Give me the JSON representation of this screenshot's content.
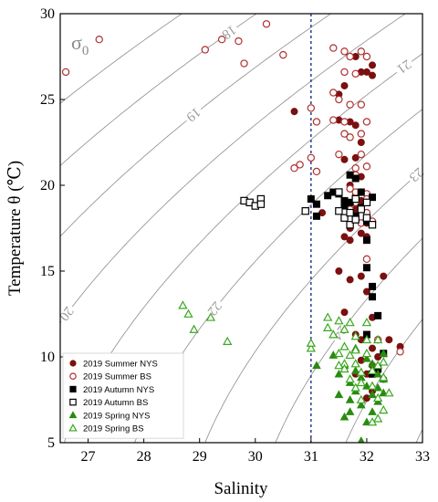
{
  "chart_data": {
    "type": "scatter",
    "xlabel": "Salinity",
    "ylabel": "Temperature θ (℃)",
    "xlim": [
      26.5,
      33
    ],
    "ylim": [
      5,
      30
    ],
    "xticks": [
      27,
      28,
      29,
      30,
      31,
      32,
      33
    ],
    "yticks": [
      5,
      10,
      15,
      20,
      25,
      30
    ],
    "reference_line_x": 31,
    "density_label": "σ",
    "density_label_sub": "0",
    "contours": [
      {
        "label": "18",
        "sigma": 18
      },
      {
        "label": "19",
        "sigma": 19
      },
      {
        "label": "20",
        "sigma": 20
      },
      {
        "label": "21",
        "sigma": 21
      },
      {
        "label": "22",
        "sigma": 22
      },
      {
        "label": "23",
        "sigma": 23
      },
      {
        "label": "24",
        "sigma": 24
      },
      {
        "sigma": 17
      },
      {
        "sigma": 25
      },
      {
        "sigma": 26
      }
    ],
    "legend_position": "bottom-left",
    "series": [
      {
        "name": "2019 Summer NYS",
        "marker": "circle-filled",
        "color": "#7a1010",
        "points": [
          [
            30.7,
            24.3
          ],
          [
            31.5,
            25.3
          ],
          [
            31.6,
            25.8
          ],
          [
            31.8,
            27.5
          ],
          [
            31.9,
            26.6
          ],
          [
            32.0,
            26.6
          ],
          [
            32.1,
            27.0
          ],
          [
            32.1,
            26.4
          ],
          [
            31.5,
            23.8
          ],
          [
            31.7,
            23.7
          ],
          [
            31.8,
            23.5
          ],
          [
            31.9,
            23.0
          ],
          [
            31.9,
            22.5
          ],
          [
            31.6,
            21.5
          ],
          [
            31.8,
            21.6
          ],
          [
            31.9,
            20.5
          ],
          [
            31.7,
            20.0
          ],
          [
            31.8,
            19.4
          ],
          [
            31.6,
            19.0
          ],
          [
            31.9,
            19.1
          ],
          [
            31.8,
            18.6
          ],
          [
            31.8,
            18.2
          ],
          [
            32.0,
            17.8
          ],
          [
            31.7,
            17.5
          ],
          [
            31.9,
            17.2
          ],
          [
            32.0,
            17.0
          ],
          [
            31.6,
            17.0
          ],
          [
            31.7,
            16.8
          ],
          [
            31.2,
            18.4
          ],
          [
            31.5,
            15.0
          ],
          [
            31.7,
            14.5
          ],
          [
            31.9,
            14.7
          ],
          [
            32.0,
            13.8
          ],
          [
            32.3,
            14.7
          ],
          [
            31.6,
            12.6
          ],
          [
            32.1,
            12.3
          ],
          [
            31.9,
            11.0
          ],
          [
            32.1,
            10.5
          ],
          [
            32.4,
            11.0
          ],
          [
            32.6,
            10.6
          ],
          [
            31.9,
            9.8
          ],
          [
            32.1,
            9.5
          ],
          [
            32.2,
            9.2
          ],
          [
            32.0,
            9.0
          ],
          [
            32.3,
            8.7
          ],
          [
            31.8,
            9.0
          ],
          [
            32.1,
            8.0
          ],
          [
            32.2,
            10.0
          ],
          [
            31.8,
            11.3
          ],
          [
            32.0,
            7.6
          ]
        ]
      },
      {
        "name": "2019 Summer BS",
        "marker": "circle-open",
        "color": "#b03030",
        "points": [
          [
            26.6,
            26.6
          ],
          [
            27.2,
            28.5
          ],
          [
            29.1,
            27.9
          ],
          [
            29.4,
            28.5
          ],
          [
            29.7,
            28.4
          ],
          [
            29.8,
            27.1
          ],
          [
            30.2,
            29.4
          ],
          [
            30.5,
            27.6
          ],
          [
            30.7,
            21.0
          ],
          [
            30.8,
            21.2
          ],
          [
            31.0,
            24.5
          ],
          [
            31.1,
            23.7
          ],
          [
            31.0,
            21.6
          ],
          [
            31.1,
            20.8
          ],
          [
            31.4,
            28.0
          ],
          [
            31.6,
            27.8
          ],
          [
            31.7,
            27.5
          ],
          [
            31.9,
            27.8
          ],
          [
            32.0,
            27.5
          ],
          [
            31.6,
            26.6
          ],
          [
            31.8,
            26.5
          ],
          [
            31.4,
            25.4
          ],
          [
            31.5,
            25.0
          ],
          [
            31.7,
            24.7
          ],
          [
            31.9,
            24.7
          ],
          [
            31.4,
            23.8
          ],
          [
            31.6,
            23.7
          ],
          [
            32.0,
            23.7
          ],
          [
            31.6,
            23.0
          ],
          [
            31.7,
            22.8
          ],
          [
            31.9,
            23.0
          ],
          [
            31.5,
            21.8
          ],
          [
            31.9,
            21.8
          ],
          [
            31.8,
            21.0
          ],
          [
            32.0,
            21.1
          ],
          [
            31.8,
            20.6
          ],
          [
            31.7,
            19.8
          ],
          [
            31.8,
            19.6
          ],
          [
            31.9,
            19.6
          ],
          [
            32.0,
            19.5
          ],
          [
            31.8,
            19.0
          ],
          [
            32.0,
            19.2
          ],
          [
            31.7,
            18.6
          ],
          [
            31.9,
            18.6
          ],
          [
            32.0,
            18.4
          ],
          [
            31.8,
            18.0
          ],
          [
            31.9,
            17.8
          ],
          [
            32.1,
            17.9
          ],
          [
            32.0,
            15.7
          ],
          [
            32.2,
            11.0
          ],
          [
            32.6,
            10.3
          ]
        ]
      },
      {
        "name": "2019 Autumn NYS",
        "marker": "square-filled",
        "color": "#000000",
        "points": [
          [
            31.0,
            19.2
          ],
          [
            31.1,
            18.9
          ],
          [
            31.1,
            18.2
          ],
          [
            31.3,
            19.4
          ],
          [
            31.4,
            19.6
          ],
          [
            31.5,
            19.5
          ],
          [
            31.6,
            19.1
          ],
          [
            31.6,
            18.8
          ],
          [
            31.7,
            20.6
          ],
          [
            31.7,
            19.0
          ],
          [
            31.8,
            20.4
          ],
          [
            31.8,
            18.2
          ],
          [
            31.9,
            19.6
          ],
          [
            32.0,
            17.9
          ],
          [
            32.0,
            16.8
          ],
          [
            32.1,
            19.3
          ],
          [
            32.0,
            15.2
          ],
          [
            32.1,
            14.1
          ],
          [
            32.1,
            13.5
          ],
          [
            32.2,
            12.4
          ],
          [
            32.0,
            11.3
          ],
          [
            32.3,
            10.2
          ],
          [
            32.2,
            9.3
          ],
          [
            32.1,
            9.0
          ],
          [
            31.9,
            18.7
          ]
        ]
      },
      {
        "name": "2019 Autumn BS",
        "marker": "square-open",
        "color": "#000000",
        "points": [
          [
            29.8,
            19.1
          ],
          [
            29.9,
            19.0
          ],
          [
            30.0,
            18.8
          ],
          [
            30.1,
            19.2
          ],
          [
            30.1,
            18.9
          ],
          [
            30.9,
            18.5
          ],
          [
            31.5,
            19.6
          ],
          [
            31.5,
            18.5
          ],
          [
            31.6,
            18.1
          ],
          [
            31.7,
            18.4
          ],
          [
            31.7,
            17.7
          ],
          [
            31.8,
            18.0
          ],
          [
            31.8,
            19.2
          ],
          [
            31.9,
            18.6
          ],
          [
            32.0,
            18.1
          ],
          [
            32.1,
            17.7
          ],
          [
            32.0,
            19.0
          ]
        ]
      },
      {
        "name": "2019 Spring NYS",
        "marker": "triangle-filled",
        "color": "#2a8a10",
        "points": [
          [
            31.5,
            9.0
          ],
          [
            31.6,
            9.5
          ],
          [
            31.7,
            8.5
          ],
          [
            31.8,
            9.2
          ],
          [
            31.7,
            7.5
          ],
          [
            31.8,
            8.0
          ],
          [
            31.9,
            8.8
          ],
          [
            31.9,
            7.2
          ],
          [
            32.0,
            9.9
          ],
          [
            32.0,
            8.3
          ],
          [
            32.1,
            9.6
          ],
          [
            32.1,
            7.8
          ],
          [
            32.1,
            6.8
          ],
          [
            32.2,
            9.0
          ],
          [
            32.2,
            8.2
          ],
          [
            32.2,
            7.4
          ],
          [
            32.3,
            10.2
          ],
          [
            32.3,
            8.7
          ],
          [
            32.3,
            7.9
          ],
          [
            31.6,
            6.5
          ],
          [
            31.7,
            6.8
          ],
          [
            31.4,
            10.1
          ],
          [
            31.5,
            7.8
          ],
          [
            31.9,
            5.1
          ],
          [
            32.0,
            6.2
          ],
          [
            31.8,
            10.5
          ],
          [
            31.1,
            9.5
          ]
        ]
      },
      {
        "name": "2019 Spring BS",
        "marker": "triangle-open",
        "color": "#3aa820",
        "points": [
          [
            28.7,
            13.0
          ],
          [
            28.8,
            12.5
          ],
          [
            28.9,
            11.6
          ],
          [
            29.2,
            12.3
          ],
          [
            29.5,
            10.9
          ],
          [
            31.0,
            10.5
          ],
          [
            31.0,
            10.8
          ],
          [
            31.3,
            12.3
          ],
          [
            31.3,
            11.7
          ],
          [
            31.5,
            12.1
          ],
          [
            31.6,
            11.6
          ],
          [
            31.7,
            12.0
          ],
          [
            31.8,
            11.2
          ],
          [
            31.8,
            10.4
          ],
          [
            31.4,
            11.3
          ],
          [
            31.5,
            10.2
          ],
          [
            31.6,
            10.6
          ],
          [
            31.6,
            9.6
          ],
          [
            31.7,
            10.1
          ],
          [
            31.8,
            9.6
          ],
          [
            31.9,
            9.1
          ],
          [
            31.9,
            8.5
          ],
          [
            31.5,
            9.5
          ],
          [
            31.6,
            9.3
          ],
          [
            31.7,
            8.7
          ],
          [
            31.8,
            8.2
          ],
          [
            32.0,
            11.0
          ],
          [
            32.0,
            10.2
          ],
          [
            32.1,
            9.2
          ],
          [
            32.2,
            9.5
          ],
          [
            32.1,
            8.3
          ],
          [
            32.2,
            7.6
          ],
          [
            32.2,
            6.4
          ],
          [
            32.3,
            6.9
          ],
          [
            32.1,
            6.2
          ],
          [
            32.2,
            11.0
          ],
          [
            32.0,
            12.0
          ],
          [
            32.3,
            9.7
          ],
          [
            32.3,
            8.8
          ],
          [
            31.9,
            7.5
          ],
          [
            32.4,
            7.9
          ]
        ]
      }
    ]
  }
}
